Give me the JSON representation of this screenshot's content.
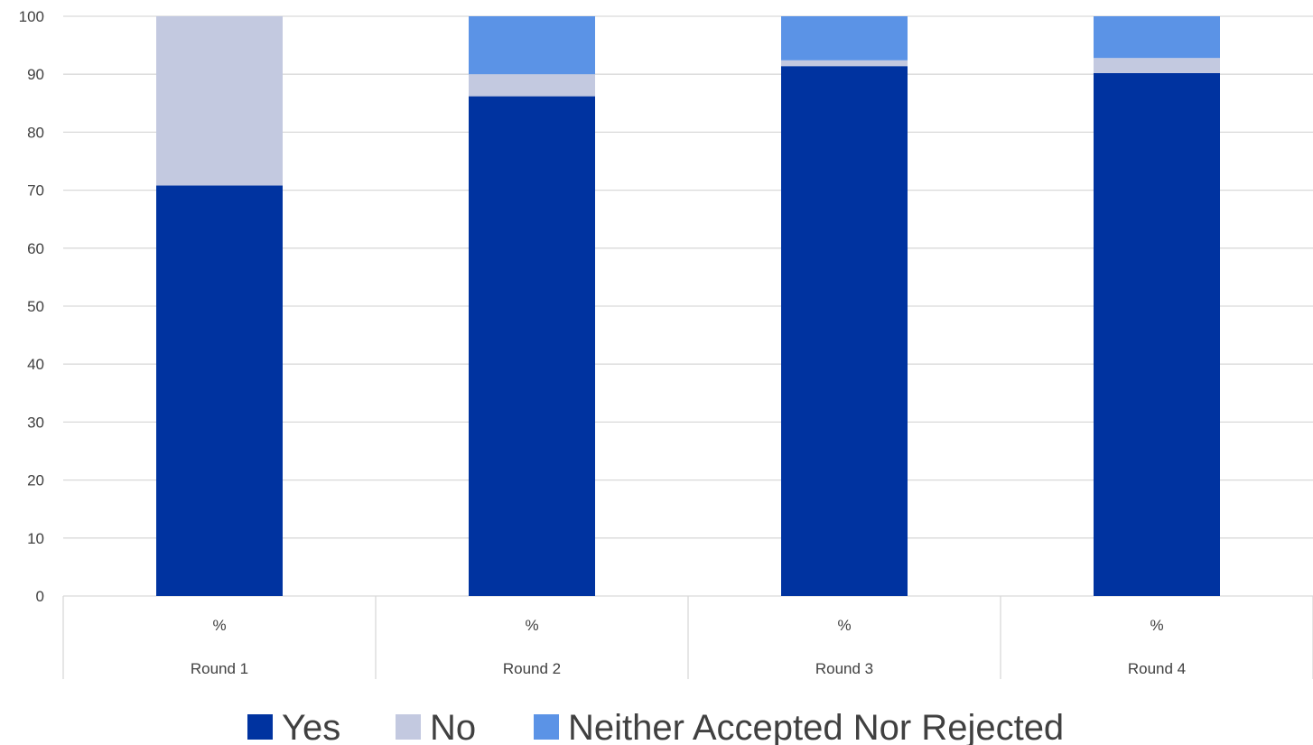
{
  "chart_data": {
    "type": "bar",
    "stacked": true,
    "categories": [
      "Round 1",
      "Round 2",
      "Round 3",
      "Round 4"
    ],
    "category_sublabels": [
      "%",
      "%",
      "%",
      "%"
    ],
    "series": [
      {
        "name": "Yes",
        "color": "#0033a0",
        "values": [
          70.8,
          86.2,
          91.4,
          90.2
        ]
      },
      {
        "name": "No",
        "color": "#c3c9e0",
        "values": [
          29.2,
          3.8,
          1.0,
          2.6
        ]
      },
      {
        "name": "Neither Accepted Nor Rejected",
        "color": "#5b93e6",
        "values": [
          0,
          10.0,
          7.6,
          7.2
        ]
      }
    ],
    "ylim": [
      0,
      100
    ],
    "yticks": [
      0,
      10,
      20,
      30,
      40,
      50,
      60,
      70,
      80,
      90,
      100
    ],
    "grid": true,
    "legend_position": "bottom",
    "title": "",
    "xlabel": "",
    "ylabel": ""
  }
}
